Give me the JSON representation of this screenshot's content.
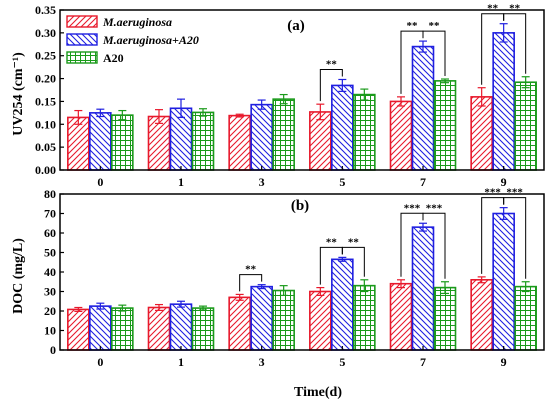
{
  "chart_data": [
    {
      "type": "bar",
      "panel_label": "(a)",
      "ylabel": "UV254  (cm⁻¹)",
      "ylim": [
        0.0,
        0.35
      ],
      "ytick_step": 0.05,
      "ytick_labels": [
        "0.00",
        "0.05",
        "0.10",
        "0.15",
        "0.20",
        "0.25",
        "0.30",
        "0.35"
      ],
      "categories": [
        "0",
        "1",
        "3",
        "5",
        "7",
        "9"
      ],
      "series": [
        {
          "name": "M.aeruginosa",
          "color": "#e8192c",
          "pattern": "diag-left",
          "values": [
            0.115,
            0.117,
            0.119,
            0.127,
            0.15,
            0.16
          ],
          "errors": [
            0.015,
            0.015,
            0.003,
            0.017,
            0.01,
            0.02
          ]
        },
        {
          "name": "M.aeruginosa+A20",
          "color": "#1f1fe0",
          "pattern": "diag-right",
          "values": [
            0.125,
            0.135,
            0.143,
            0.185,
            0.27,
            0.3
          ],
          "errors": [
            0.008,
            0.02,
            0.01,
            0.013,
            0.012,
            0.02
          ]
        },
        {
          "name": "A20",
          "color": "#1a9a1a",
          "pattern": "grid",
          "values": [
            0.12,
            0.126,
            0.155,
            0.165,
            0.195,
            0.192
          ],
          "errors": [
            0.01,
            0.008,
            0.01,
            0.012,
            0.004,
            0.012
          ]
        }
      ],
      "significance": [
        {
          "category": 3,
          "from": 0,
          "to": 1,
          "label": "**"
        },
        {
          "category": 4,
          "from": 0,
          "to": 1,
          "label": "**"
        },
        {
          "category": 4,
          "from": 1,
          "to": 2,
          "label": "**"
        },
        {
          "category": 5,
          "from": 0,
          "to": 1,
          "label": "**"
        },
        {
          "category": 5,
          "from": 1,
          "to": 2,
          "label": "**"
        }
      ],
      "legend": {
        "placement": "top-left",
        "entries": [
          "M.aeruginosa",
          "M.aeruginosa+A20",
          "A20"
        ]
      },
      "xlabel": ""
    },
    {
      "type": "bar",
      "panel_label": "(b)",
      "ylabel": "DOC (mg/L)",
      "ylim": [
        0,
        80
      ],
      "ytick_step": 10,
      "ytick_labels": [
        "0",
        "10",
        "20",
        "30",
        "40",
        "50",
        "60",
        "70",
        "80"
      ],
      "categories": [
        "0",
        "1",
        "3",
        "5",
        "7",
        "9"
      ],
      "series": [
        {
          "name": "M.aeruginosa",
          "color": "#e8192c",
          "pattern": "diag-left",
          "values": [
            20.8,
            21.8,
            27.0,
            30.0,
            34.0,
            36.0
          ],
          "errors": [
            1.0,
            1.5,
            1.5,
            2.0,
            2.0,
            1.5
          ]
        },
        {
          "name": "M.aeruginosa+A20",
          "color": "#1f1fe0",
          "pattern": "diag-right",
          "values": [
            22.5,
            23.5,
            32.5,
            46.5,
            63.0,
            70.0
          ],
          "errors": [
            1.5,
            1.5,
            1.0,
            1.0,
            2.0,
            3.0
          ]
        },
        {
          "name": "A20",
          "color": "#1a9a1a",
          "pattern": "grid",
          "values": [
            21.5,
            21.5,
            30.5,
            33.0,
            32.0,
            32.5
          ],
          "errors": [
            1.5,
            1.0,
            2.5,
            3.0,
            3.0,
            2.5
          ]
        }
      ],
      "significance": [
        {
          "category": 2,
          "from": 0,
          "to": 1,
          "label": "**"
        },
        {
          "category": 3,
          "from": 0,
          "to": 1,
          "label": "**"
        },
        {
          "category": 3,
          "from": 1,
          "to": 2,
          "label": "**"
        },
        {
          "category": 4,
          "from": 0,
          "to": 1,
          "label": "***"
        },
        {
          "category": 4,
          "from": 1,
          "to": 2,
          "label": "***"
        },
        {
          "category": 5,
          "from": 0,
          "to": 1,
          "label": "***"
        },
        {
          "category": 5,
          "from": 1,
          "to": 2,
          "label": "***"
        }
      ],
      "xlabel": "Time(d)"
    }
  ]
}
